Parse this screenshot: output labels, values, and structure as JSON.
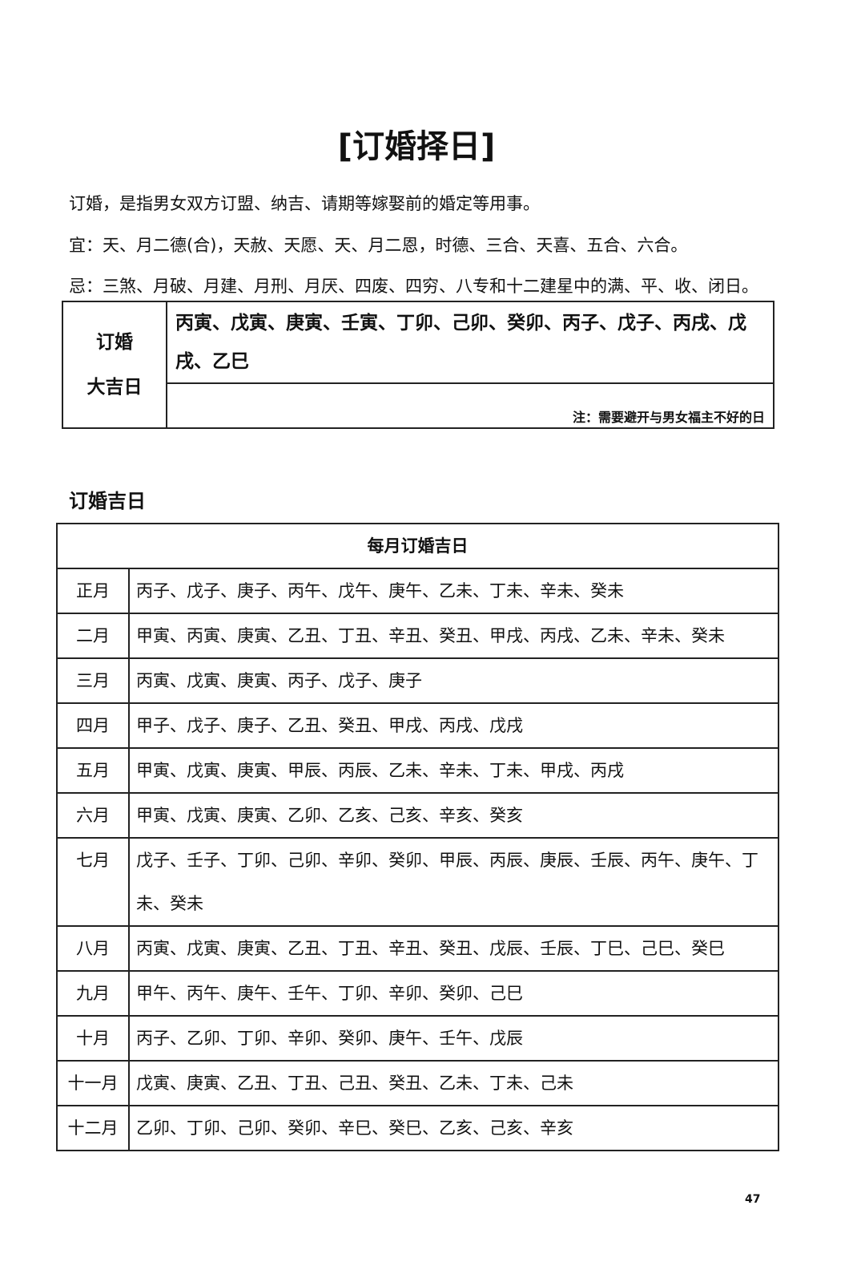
{
  "title": "[订婚择日]",
  "intro": [
    "订婚，是指男女双方订盟、纳吉、请期等嫁娶前的婚定等用事。",
    "宜：天、月二德(合)，天赦、天愿、天、月二恩，时德、三合、天喜、五合、六合。",
    "忌：三煞、月破、月建、月刑、月厌、四废、四穷、八专和十二建星中的满、平、收、闭日。"
  ],
  "notice_box": {
    "label_lines": [
      "订婚",
      "大吉日"
    ],
    "days": "丙寅、戊寅、庚寅、壬寅、丁卯、己卯、癸卯、丙子、戊子、丙戌、戊戌、乙巳",
    "note": "注：需要避开与男女福主不好的日"
  },
  "section_title": "订婚吉日",
  "table": {
    "header": "每月订婚吉日",
    "rows": [
      [
        "正月",
        "丙子、戊子、庚子、丙午、戊午、庚午、乙未、丁未、辛未、癸未"
      ],
      [
        "二月",
        "甲寅、丙寅、庚寅、乙丑、丁丑、辛丑、癸丑、甲戌、丙戌、乙未、辛未、癸未"
      ],
      [
        "三月",
        "丙寅、戊寅、庚寅、丙子、戊子、庚子"
      ],
      [
        "四月",
        "甲子、戊子、庚子、乙丑、癸丑、甲戌、丙戌、戊戌"
      ],
      [
        "五月",
        "甲寅、戊寅、庚寅、甲辰、丙辰、乙未、辛未、丁未、甲戌、丙戌"
      ],
      [
        "六月",
        "甲寅、戊寅、庚寅、乙卯、乙亥、己亥、辛亥、癸亥"
      ],
      [
        "七月",
        "戊子、壬子、丁卯、己卯、辛卯、癸卯、甲辰、丙辰、庚辰、壬辰、丙午、庚午、丁未、癸未"
      ],
      [
        "八月",
        "丙寅、戊寅、庚寅、乙丑、丁丑、辛丑、癸丑、戊辰、壬辰、丁巳、己巳、癸巳"
      ],
      [
        "九月",
        "甲午、丙午、庚午、壬午、丁卯、辛卯、癸卯、己巳"
      ],
      [
        "十月",
        "丙子、乙卯、丁卯、辛卯、癸卯、庚午、壬午、戊辰"
      ],
      [
        "十一月",
        "戊寅、庚寅、乙丑、丁丑、己丑、癸丑、乙未、丁未、己未"
      ],
      [
        "十二月",
        "乙卯、丁卯、己卯、癸卯、辛巳、癸巳、乙亥、己亥、辛亥"
      ]
    ]
  },
  "page_number": "47"
}
